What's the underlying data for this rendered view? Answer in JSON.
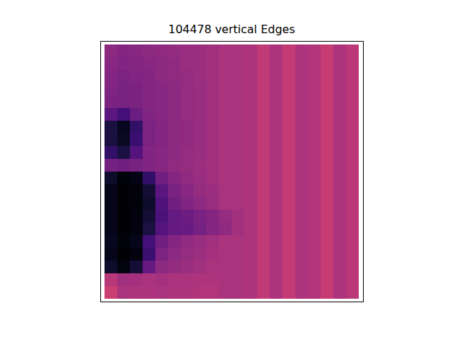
{
  "chart_data": {
    "type": "heatmap",
    "title": "104478 vertical Edges",
    "color": "magma",
    "zlim": [
      0,
      1
    ],
    "tick_labels": false,
    "cells": [
      [
        0.4,
        0.38,
        0.39,
        0.4,
        0.41,
        0.42,
        0.43,
        0.44,
        0.45,
        0.47,
        0.47,
        0.48,
        0.52,
        0.48,
        0.53,
        0.48,
        0.49,
        0.54,
        0.48,
        0.51
      ],
      [
        0.39,
        0.37,
        0.38,
        0.39,
        0.4,
        0.41,
        0.43,
        0.44,
        0.45,
        0.47,
        0.47,
        0.48,
        0.52,
        0.48,
        0.53,
        0.48,
        0.49,
        0.54,
        0.48,
        0.51
      ],
      [
        0.38,
        0.36,
        0.37,
        0.38,
        0.4,
        0.41,
        0.42,
        0.44,
        0.45,
        0.47,
        0.47,
        0.48,
        0.52,
        0.48,
        0.53,
        0.48,
        0.49,
        0.54,
        0.48,
        0.51
      ],
      [
        0.37,
        0.35,
        0.36,
        0.38,
        0.39,
        0.4,
        0.42,
        0.43,
        0.45,
        0.47,
        0.47,
        0.48,
        0.52,
        0.48,
        0.53,
        0.48,
        0.49,
        0.54,
        0.48,
        0.51
      ],
      [
        0.36,
        0.35,
        0.36,
        0.38,
        0.39,
        0.4,
        0.42,
        0.43,
        0.45,
        0.47,
        0.47,
        0.48,
        0.52,
        0.48,
        0.53,
        0.48,
        0.49,
        0.54,
        0.48,
        0.51
      ],
      [
        0.28,
        0.22,
        0.32,
        0.37,
        0.39,
        0.4,
        0.42,
        0.43,
        0.45,
        0.47,
        0.47,
        0.48,
        0.52,
        0.48,
        0.53,
        0.48,
        0.49,
        0.54,
        0.48,
        0.51
      ],
      [
        0.12,
        0.06,
        0.18,
        0.36,
        0.38,
        0.4,
        0.41,
        0.43,
        0.45,
        0.47,
        0.47,
        0.48,
        0.52,
        0.48,
        0.53,
        0.48,
        0.49,
        0.54,
        0.48,
        0.51
      ],
      [
        0.12,
        0.07,
        0.2,
        0.36,
        0.38,
        0.4,
        0.41,
        0.43,
        0.45,
        0.47,
        0.47,
        0.48,
        0.52,
        0.48,
        0.53,
        0.48,
        0.49,
        0.54,
        0.48,
        0.51
      ],
      [
        0.18,
        0.12,
        0.26,
        0.37,
        0.39,
        0.4,
        0.42,
        0.43,
        0.45,
        0.47,
        0.47,
        0.48,
        0.52,
        0.48,
        0.53,
        0.48,
        0.49,
        0.54,
        0.48,
        0.51
      ],
      [
        0.34,
        0.33,
        0.35,
        0.37,
        0.39,
        0.41,
        0.42,
        0.44,
        0.45,
        0.47,
        0.47,
        0.48,
        0.52,
        0.48,
        0.53,
        0.48,
        0.49,
        0.54,
        0.48,
        0.51
      ],
      [
        0.08,
        0.02,
        0.04,
        0.18,
        0.33,
        0.38,
        0.41,
        0.43,
        0.45,
        0.47,
        0.47,
        0.48,
        0.52,
        0.48,
        0.53,
        0.48,
        0.49,
        0.54,
        0.48,
        0.51
      ],
      [
        0.05,
        0.01,
        0.02,
        0.1,
        0.28,
        0.35,
        0.39,
        0.42,
        0.44,
        0.47,
        0.47,
        0.48,
        0.52,
        0.48,
        0.53,
        0.48,
        0.49,
        0.54,
        0.48,
        0.51
      ],
      [
        0.05,
        0.01,
        0.02,
        0.08,
        0.25,
        0.33,
        0.37,
        0.4,
        0.43,
        0.47,
        0.47,
        0.48,
        0.52,
        0.48,
        0.53,
        0.48,
        0.49,
        0.54,
        0.48,
        0.51
      ],
      [
        0.05,
        0.01,
        0.03,
        0.1,
        0.24,
        0.3,
        0.32,
        0.35,
        0.38,
        0.42,
        0.45,
        0.48,
        0.52,
        0.48,
        0.53,
        0.48,
        0.49,
        0.54,
        0.48,
        0.51
      ],
      [
        0.05,
        0.01,
        0.03,
        0.12,
        0.26,
        0.3,
        0.31,
        0.34,
        0.38,
        0.41,
        0.45,
        0.48,
        0.52,
        0.48,
        0.53,
        0.48,
        0.49,
        0.54,
        0.48,
        0.51
      ],
      [
        0.06,
        0.02,
        0.05,
        0.22,
        0.33,
        0.38,
        0.41,
        0.43,
        0.45,
        0.47,
        0.47,
        0.48,
        0.52,
        0.48,
        0.53,
        0.48,
        0.49,
        0.54,
        0.48,
        0.51
      ],
      [
        0.05,
        0.01,
        0.03,
        0.2,
        0.36,
        0.4,
        0.42,
        0.44,
        0.46,
        0.47,
        0.47,
        0.48,
        0.52,
        0.48,
        0.53,
        0.48,
        0.49,
        0.54,
        0.48,
        0.51
      ],
      [
        0.08,
        0.03,
        0.1,
        0.3,
        0.4,
        0.42,
        0.44,
        0.45,
        0.47,
        0.47,
        0.47,
        0.48,
        0.52,
        0.48,
        0.53,
        0.48,
        0.49,
        0.54,
        0.48,
        0.51
      ],
      [
        0.5,
        0.45,
        0.46,
        0.47,
        0.46,
        0.47,
        0.47,
        0.48,
        0.48,
        0.47,
        0.47,
        0.48,
        0.52,
        0.48,
        0.53,
        0.48,
        0.49,
        0.54,
        0.48,
        0.51
      ],
      [
        0.55,
        0.47,
        0.48,
        0.48,
        0.47,
        0.48,
        0.48,
        0.49,
        0.49,
        0.47,
        0.47,
        0.48,
        0.52,
        0.48,
        0.53,
        0.48,
        0.49,
        0.54,
        0.48,
        0.51
      ]
    ]
  }
}
